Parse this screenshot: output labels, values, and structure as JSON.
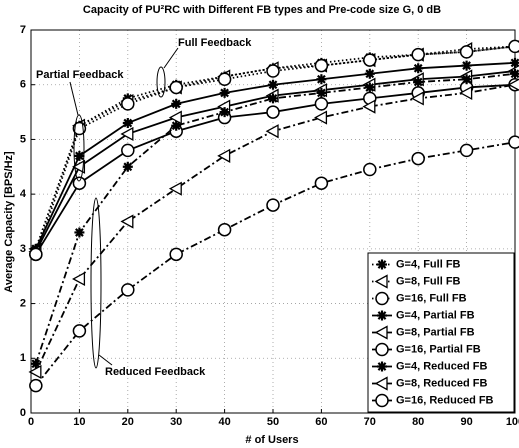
{
  "chart_data": {
    "type": "line",
    "title": "Capacity of PU²RC with Different FB types and Pre-code size G, 0 dB",
    "xlabel": "# of Users",
    "ylabel": "Average Capacity [BPS/Hz]",
    "x": [
      1,
      10,
      20,
      30,
      40,
      50,
      60,
      70,
      80,
      90,
      100
    ],
    "xlim": [
      0,
      100
    ],
    "xticks": [
      0,
      10,
      20,
      30,
      40,
      50,
      60,
      70,
      80,
      90,
      100
    ],
    "ylim": [
      0,
      7
    ],
    "yticks": [
      0,
      1,
      2,
      3,
      4,
      5,
      6,
      7
    ],
    "grid": true,
    "legend": "lower right",
    "annotations": [
      "Full Feedback",
      "Partial Feedback",
      "Reduced Feedback"
    ],
    "series": [
      {
        "name": "G=4, Full FB",
        "color": "#000000",
        "marker": "asterisk",
        "linestyle": "dotted",
        "values": [
          3.0,
          5.25,
          5.75,
          6.0,
          6.15,
          6.3,
          6.4,
          6.5,
          6.55,
          6.6,
          6.7
        ]
      },
      {
        "name": "G=8, Full FB",
        "color": "#000000",
        "marker": "triangle-left",
        "linestyle": "dotted",
        "values": [
          3.0,
          5.25,
          5.7,
          5.95,
          6.15,
          6.3,
          6.35,
          6.45,
          6.55,
          6.65,
          6.7
        ]
      },
      {
        "name": "G=16, Full FB",
        "color": "#000000",
        "marker": "circle",
        "linestyle": "dotted",
        "values": [
          2.9,
          5.2,
          5.65,
          5.95,
          6.1,
          6.25,
          6.35,
          6.45,
          6.55,
          6.6,
          6.7
        ]
      },
      {
        "name": "G=4, Partial FB",
        "color": "#000000",
        "marker": "asterisk",
        "linestyle": "solid",
        "values": [
          3.0,
          4.7,
          5.3,
          5.65,
          5.85,
          6.0,
          6.1,
          6.2,
          6.3,
          6.35,
          6.4
        ]
      },
      {
        "name": "G=8, Partial FB",
        "color": "#000000",
        "marker": "triangle-left",
        "linestyle": "solid",
        "values": [
          2.95,
          4.5,
          5.1,
          5.4,
          5.6,
          5.8,
          5.9,
          6.0,
          6.1,
          6.15,
          6.25
        ]
      },
      {
        "name": "G=16, Partial FB",
        "color": "#000000",
        "marker": "circle",
        "linestyle": "solid",
        "values": [
          2.9,
          4.2,
          4.8,
          5.15,
          5.4,
          5.5,
          5.65,
          5.75,
          5.85,
          5.95,
          6.0
        ]
      },
      {
        "name": "G=4, Reduced FB",
        "color": "#000000",
        "marker": "asterisk",
        "linestyle": "dashdot",
        "values": [
          0.9,
          3.3,
          4.5,
          5.25,
          5.5,
          5.75,
          5.85,
          5.95,
          6.05,
          6.1,
          6.2
        ]
      },
      {
        "name": "G=8, Reduced FB",
        "color": "#000000",
        "marker": "triangle-left",
        "linestyle": "dashdot",
        "values": [
          0.75,
          2.45,
          3.5,
          4.1,
          4.7,
          5.15,
          5.4,
          5.6,
          5.75,
          5.85,
          6.0
        ]
      },
      {
        "name": "G=16, Reduced FB",
        "color": "#000000",
        "marker": "circle",
        "linestyle": "dashdot",
        "values": [
          0.5,
          1.5,
          2.25,
          2.9,
          3.35,
          3.8,
          4.2,
          4.45,
          4.65,
          4.8,
          4.95
        ]
      }
    ]
  }
}
